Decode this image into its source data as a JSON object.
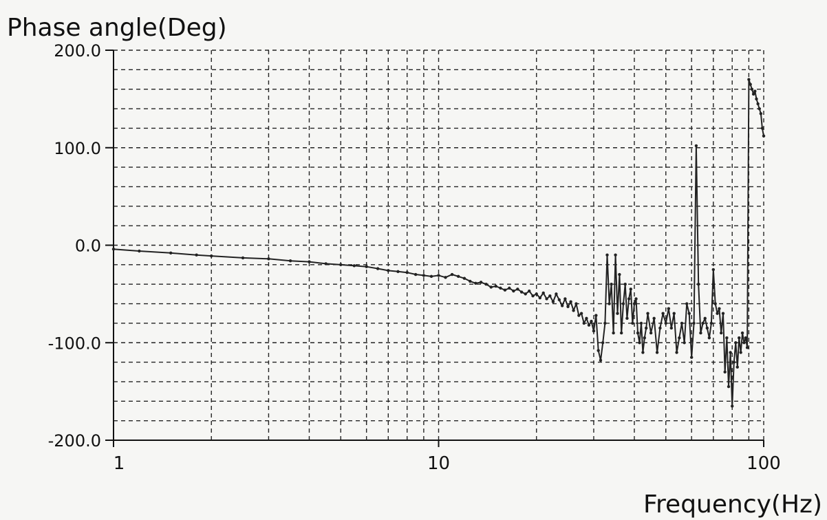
{
  "chart_data": {
    "type": "line",
    "title": "",
    "xlabel": "Frequency(Hz)",
    "ylabel": "Phase angle(Deg)",
    "x_scale": "log",
    "xlim": [
      1,
      100
    ],
    "ylim": [
      -200,
      200
    ],
    "grid": true,
    "grid_style": "dashed",
    "yticks": [
      {
        "value": 200,
        "label": "200.0"
      },
      {
        "value": 100,
        "label": "100.0"
      },
      {
        "value": 0,
        "label": "0.0"
      },
      {
        "value": -100,
        "label": "-100.0"
      },
      {
        "value": -200,
        "label": "-200.0"
      }
    ],
    "xticks": [
      {
        "value": 1,
        "label": "1"
      },
      {
        "value": 10,
        "label": "10"
      },
      {
        "value": 100,
        "label": "100"
      }
    ],
    "series": [
      {
        "color": "#222222",
        "points": [
          [
            1.0,
            -4
          ],
          [
            1.2,
            -6
          ],
          [
            1.5,
            -8
          ],
          [
            1.8,
            -10
          ],
          [
            2.0,
            -11
          ],
          [
            2.5,
            -13
          ],
          [
            3.0,
            -14
          ],
          [
            3.5,
            -16
          ],
          [
            4.0,
            -17
          ],
          [
            4.5,
            -19
          ],
          [
            5.0,
            -20
          ],
          [
            5.5,
            -21
          ],
          [
            6.0,
            -22
          ],
          [
            6.5,
            -24
          ],
          [
            7.0,
            -26
          ],
          [
            7.5,
            -27
          ],
          [
            8.0,
            -28
          ],
          [
            8.5,
            -30
          ],
          [
            9.0,
            -31
          ],
          [
            9.5,
            -32
          ],
          [
            10.0,
            -31
          ],
          [
            10.5,
            -33
          ],
          [
            11.0,
            -30
          ],
          [
            11.5,
            -32
          ],
          [
            12.0,
            -34
          ],
          [
            12.5,
            -37
          ],
          [
            13.0,
            -39
          ],
          [
            13.5,
            -38
          ],
          [
            14.0,
            -40
          ],
          [
            14.5,
            -43
          ],
          [
            15.0,
            -42
          ],
          [
            15.5,
            -44
          ],
          [
            16.0,
            -46
          ],
          [
            16.5,
            -44
          ],
          [
            17.0,
            -47
          ],
          [
            17.5,
            -45
          ],
          [
            18.0,
            -48
          ],
          [
            18.5,
            -50
          ],
          [
            19.0,
            -47
          ],
          [
            19.5,
            -52
          ],
          [
            20.0,
            -50
          ],
          [
            20.5,
            -54
          ],
          [
            21.0,
            -49
          ],
          [
            21.5,
            -55
          ],
          [
            22.0,
            -52
          ],
          [
            22.5,
            -58
          ],
          [
            23.0,
            -50
          ],
          [
            23.5,
            -56
          ],
          [
            24.0,
            -62
          ],
          [
            24.5,
            -55
          ],
          [
            25.0,
            -63
          ],
          [
            25.5,
            -58
          ],
          [
            26.0,
            -67
          ],
          [
            26.5,
            -60
          ],
          [
            27.0,
            -72
          ],
          [
            27.5,
            -70
          ],
          [
            28.0,
            -80
          ],
          [
            28.5,
            -75
          ],
          [
            29.0,
            -82
          ],
          [
            29.5,
            -78
          ],
          [
            30.0,
            -88
          ],
          [
            30.5,
            -72
          ],
          [
            31.0,
            -108
          ],
          [
            31.5,
            -118
          ],
          [
            32.0,
            -100
          ],
          [
            32.5,
            -80
          ],
          [
            33.0,
            -10
          ],
          [
            33.5,
            -60
          ],
          [
            34.0,
            -40
          ],
          [
            34.5,
            -90
          ],
          [
            35.0,
            -10
          ],
          [
            35.5,
            -70
          ],
          [
            36.0,
            -30
          ],
          [
            36.5,
            -90
          ],
          [
            37.0,
            -60
          ],
          [
            37.5,
            -40
          ],
          [
            38.0,
            -75
          ],
          [
            38.5,
            -55
          ],
          [
            39.0,
            -45
          ],
          [
            39.5,
            -80
          ],
          [
            40.0,
            -60
          ],
          [
            40.5,
            -55
          ],
          [
            41.0,
            -90
          ],
          [
            41.5,
            -100
          ],
          [
            42.0,
            -80
          ],
          [
            42.5,
            -110
          ],
          [
            43.0,
            -95
          ],
          [
            43.5,
            -85
          ],
          [
            44.0,
            -70
          ],
          [
            45.0,
            -90
          ],
          [
            46.0,
            -75
          ],
          [
            47.0,
            -110
          ],
          [
            48.0,
            -85
          ],
          [
            49.0,
            -70
          ],
          [
            50.0,
            -80
          ],
          [
            51.0,
            -65
          ],
          [
            52.0,
            -85
          ],
          [
            53.0,
            -70
          ],
          [
            54.0,
            -110
          ],
          [
            55.0,
            -95
          ],
          [
            56.0,
            -80
          ],
          [
            57.0,
            -100
          ],
          [
            58.0,
            -60
          ],
          [
            59.0,
            -70
          ],
          [
            60.0,
            -115
          ],
          [
            61.0,
            -80
          ],
          [
            62.0,
            102
          ],
          [
            63.0,
            -40
          ],
          [
            64.0,
            -90
          ],
          [
            65.0,
            -80
          ],
          [
            66.0,
            -75
          ],
          [
            67.0,
            -85
          ],
          [
            68.0,
            -95
          ],
          [
            69.0,
            -80
          ],
          [
            70.0,
            -25
          ],
          [
            71.0,
            -60
          ],
          [
            72.0,
            -70
          ],
          [
            73.0,
            -65
          ],
          [
            74.0,
            -90
          ],
          [
            75.0,
            -70
          ],
          [
            76.0,
            -130
          ],
          [
            77.0,
            -95
          ],
          [
            78.0,
            -145
          ],
          [
            79.0,
            -110
          ],
          [
            80.0,
            -165
          ],
          [
            81.0,
            -120
          ],
          [
            82.0,
            -100
          ],
          [
            83.0,
            -125
          ],
          [
            84.0,
            -95
          ],
          [
            85.0,
            -110
          ],
          [
            86.0,
            -90
          ],
          [
            87.0,
            -100
          ],
          [
            88.0,
            -95
          ],
          [
            89.0,
            -105
          ],
          [
            90.0,
            170
          ],
          [
            91.0,
            165
          ],
          [
            92.0,
            160
          ],
          [
            93.0,
            155
          ],
          [
            94.0,
            158
          ],
          [
            95.0,
            150
          ],
          [
            96.0,
            145
          ],
          [
            97.0,
            140
          ],
          [
            98.0,
            135
          ],
          [
            99.0,
            120
          ],
          [
            100.0,
            112
          ]
        ]
      }
    ]
  }
}
